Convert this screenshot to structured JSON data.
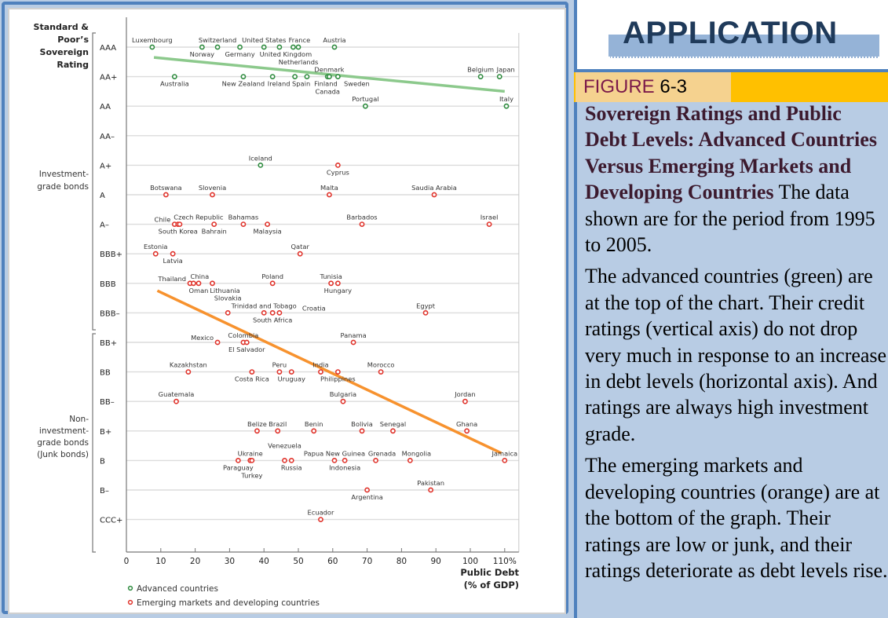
{
  "right_panel": {
    "section_title": "APPLICATION",
    "figure_word": "FIGURE",
    "figure_number": "6-3",
    "caption_heading": "Sovereign Ratings and Public Debt Levels: Advanced Countries Versus Emerging Markets and Developing Countries",
    "caption_text": " The data shown are for the period from 1995 to 2005.",
    "paragraph_1": "The advanced countries (green) are at the top of the chart. Their credit ratings (vertical axis) do not drop very much in response to an increase in debt levels (horizontal axis). And ratings are always high investment grade.",
    "paragraph_2": "The emerging markets and developing countries (orange) are at the bottom of the graph. Their ratings are low or junk, and their ratings deteriorate as debt levels rise."
  },
  "colors": {
    "advanced": "#2e8b3e",
    "emerging": "#e0332b",
    "advanced_trend": "#8cc98c",
    "emerging_trend": "#f7922e",
    "frame_blue": "#4f81bd",
    "panel_bg": "#b8cce4",
    "figure_strip": "#ffc000",
    "figure_label_bg": "#f5d28f"
  },
  "chart_data": {
    "type": "scatter",
    "title": "",
    "ylabel": "Standard & Poor's Sovereign Rating",
    "xlabel": "Public Debt (% of GDP)",
    "xlim": [
      0,
      110
    ],
    "x_ticks": [
      "0",
      "10",
      "20",
      "30",
      "40",
      "50",
      "60",
      "70",
      "80",
      "90",
      "100",
      "110%"
    ],
    "x_tick_values": [
      0,
      10,
      20,
      30,
      40,
      50,
      60,
      70,
      80,
      90,
      100,
      110
    ],
    "y_categories": [
      "AAA",
      "AA+",
      "AA",
      "AA–",
      "A+",
      "A",
      "A–",
      "BBB+",
      "BBB",
      "BBB–",
      "BB+",
      "BB",
      "BB–",
      "B+",
      "B",
      "B–",
      "CCC+"
    ],
    "grid": true,
    "bracket_labels": [
      {
        "text": "Investment-grade bonds",
        "from": "AAA",
        "to": "BBB–"
      },
      {
        "text": "Non-investment-grade bonds (Junk bonds)",
        "from": "BB+",
        "to": "CCC+"
      }
    ],
    "legend": {
      "placement": "bottom-left",
      "entries": [
        "Advanced countries",
        "Emerging markets and developing countries"
      ]
    },
    "series": [
      {
        "name": "Advanced countries",
        "points": [
          {
            "label": "Luxembourg",
            "x": 7.5,
            "rating": "AAA"
          },
          {
            "label": "Norway",
            "x": 22,
            "rating": "AAA"
          },
          {
            "label": "Switzerland",
            "x": 26.5,
            "rating": "AAA"
          },
          {
            "label": "Germany",
            "x": 33,
            "rating": "AAA"
          },
          {
            "label": "United States",
            "x": 40,
            "rating": "AAA"
          },
          {
            "label": "United Kingdom",
            "x": 44.5,
            "rating": "AAA"
          },
          {
            "label": "France",
            "x": 48.5,
            "rating": "AAA"
          },
          {
            "label": "Netherlands",
            "x": 50,
            "rating": "AAA"
          },
          {
            "label": "Austria",
            "x": 60.5,
            "rating": "AAA"
          },
          {
            "label": "Australia",
            "x": 14,
            "rating": "AA+"
          },
          {
            "label": "New Zealand",
            "x": 34,
            "rating": "AA+"
          },
          {
            "label": "Ireland",
            "x": 42.5,
            "rating": "AA+"
          },
          {
            "label": "Spain",
            "x": 49,
            "rating": "AA+"
          },
          {
            "label": "Finland",
            "x": 52.5,
            "rating": "AA+"
          },
          {
            "label": "Canada",
            "x": 58.5,
            "rating": "AA+"
          },
          {
            "label": "Denmark",
            "x": 59,
            "rating": "AA+"
          },
          {
            "label": "Sweden",
            "x": 61.5,
            "rating": "AA+"
          },
          {
            "label": "Belgium",
            "x": 103,
            "rating": "AA+"
          },
          {
            "label": "Japan",
            "x": 108.5,
            "rating": "AA+"
          },
          {
            "label": "Portugal",
            "x": 69.5,
            "rating": "AA"
          },
          {
            "label": "Italy",
            "x": 110.5,
            "rating": "AA"
          },
          {
            "label": "Iceland",
            "x": 39,
            "rating": "A+"
          }
        ],
        "trend": {
          "x": [
            8,
            110
          ],
          "rating_index": [
            0.35,
            1.5
          ]
        }
      },
      {
        "name": "Emerging markets and developing countries",
        "points": [
          {
            "label": "Cyprus",
            "x": 61.5,
            "rating": "A+"
          },
          {
            "label": "Botswana",
            "x": 11.5,
            "rating": "A"
          },
          {
            "label": "Slovenia",
            "x": 25,
            "rating": "A"
          },
          {
            "label": "Malta",
            "x": 59,
            "rating": "A"
          },
          {
            "label": "Saudia Arabia",
            "x": 89.5,
            "rating": "A"
          },
          {
            "label": "Chile",
            "x": 14,
            "rating": "A–"
          },
          {
            "label": "South Korea",
            "x": 15,
            "rating": "A–"
          },
          {
            "label": "Czech Republic",
            "x": 15.5,
            "rating": "A–"
          },
          {
            "label": "Bahrain",
            "x": 25.5,
            "rating": "A–"
          },
          {
            "label": "Bahamas",
            "x": 34,
            "rating": "A–"
          },
          {
            "label": "Malaysia",
            "x": 41,
            "rating": "A–"
          },
          {
            "label": "Barbados",
            "x": 68.5,
            "rating": "A–"
          },
          {
            "label": "Israel",
            "x": 105.5,
            "rating": "A–"
          },
          {
            "label": "Estonia",
            "x": 8.5,
            "rating": "BBB+"
          },
          {
            "label": "Latvia",
            "x": 13.5,
            "rating": "BBB+"
          },
          {
            "label": "Qatar",
            "x": 50.5,
            "rating": "BBB+"
          },
          {
            "label": "Thailand",
            "x": 18.5,
            "rating": "BBB"
          },
          {
            "label": "China",
            "x": 19.5,
            "rating": "BBB"
          },
          {
            "label": "Oman",
            "x": 21,
            "rating": "BBB"
          },
          {
            "label": "Lithuania",
            "x": 25,
            "rating": "BBB"
          },
          {
            "label": "Poland",
            "x": 42.5,
            "rating": "BBB"
          },
          {
            "label": "Tunisia",
            "x": 59.5,
            "rating": "BBB"
          },
          {
            "label": "Hungary",
            "x": 61.5,
            "rating": "BBB"
          },
          {
            "label": "Slovakia",
            "x": 29.5,
            "rating": "BBB–"
          },
          {
            "label": "Trinidad and Tobago",
            "x": 40,
            "rating": "BBB–"
          },
          {
            "label": "South Africa",
            "x": 42.5,
            "rating": "BBB–"
          },
          {
            "label": "Croatia",
            "x": 44.5,
            "rating": "BBB–"
          },
          {
            "label": "Egypt",
            "x": 87,
            "rating": "BBB–"
          },
          {
            "label": "Mexico",
            "x": 26.5,
            "rating": "BB+"
          },
          {
            "label": "Colombia",
            "x": 34,
            "rating": "BB+"
          },
          {
            "label": "El Salvador",
            "x": 35,
            "rating": "BB+"
          },
          {
            "label": "Panama",
            "x": 66,
            "rating": "BB+"
          },
          {
            "label": "Kazakhstan",
            "x": 18,
            "rating": "BB"
          },
          {
            "label": "Costa Rica",
            "x": 36.5,
            "rating": "BB"
          },
          {
            "label": "Peru",
            "x": 44.5,
            "rating": "BB"
          },
          {
            "label": "Uruguay",
            "x": 48,
            "rating": "BB"
          },
          {
            "label": "India",
            "x": 56.5,
            "rating": "BB"
          },
          {
            "label": "Philippines",
            "x": 61.5,
            "rating": "BB"
          },
          {
            "label": "Morocco",
            "x": 74,
            "rating": "BB"
          },
          {
            "label": "Guatemala",
            "x": 14.5,
            "rating": "BB–"
          },
          {
            "label": "Bulgaria",
            "x": 63,
            "rating": "BB–"
          },
          {
            "label": "Jordan",
            "x": 98.5,
            "rating": "BB–"
          },
          {
            "label": "Belize",
            "x": 38,
            "rating": "B+"
          },
          {
            "label": "Brazil",
            "x": 44,
            "rating": "B+"
          },
          {
            "label": "Benin",
            "x": 54.5,
            "rating": "B+"
          },
          {
            "label": "Bolivia",
            "x": 68.5,
            "rating": "B+"
          },
          {
            "label": "Senegal",
            "x": 77.5,
            "rating": "B+"
          },
          {
            "label": "Ghana",
            "x": 99,
            "rating": "B+"
          },
          {
            "label": "Paraguay",
            "x": 32.5,
            "rating": "B"
          },
          {
            "label": "Ukraine",
            "x": 36,
            "rating": "B"
          },
          {
            "label": "Turkey",
            "x": 36.5,
            "rating": "B"
          },
          {
            "label": "Venezuela",
            "x": 46,
            "rating": "B"
          },
          {
            "label": "Russia",
            "x": 48,
            "rating": "B"
          },
          {
            "label": "Papua New Guinea",
            "x": 60.5,
            "rating": "B"
          },
          {
            "label": "Indonesia",
            "x": 63.5,
            "rating": "B"
          },
          {
            "label": "Grenada",
            "x": 72.5,
            "rating": "B"
          },
          {
            "label": "Mongolia",
            "x": 82.5,
            "rating": "B"
          },
          {
            "label": "Jamaica",
            "x": 110,
            "rating": "B"
          },
          {
            "label": "Argentina",
            "x": 70,
            "rating": "B–"
          },
          {
            "label": "Pakistan",
            "x": 88.5,
            "rating": "B–"
          },
          {
            "label": "Ecuador",
            "x": 56.5,
            "rating": "CCC+"
          }
        ],
        "trend": {
          "x": [
            9,
            109
          ],
          "rating_index": [
            8.25,
            13.75
          ]
        }
      }
    ]
  }
}
